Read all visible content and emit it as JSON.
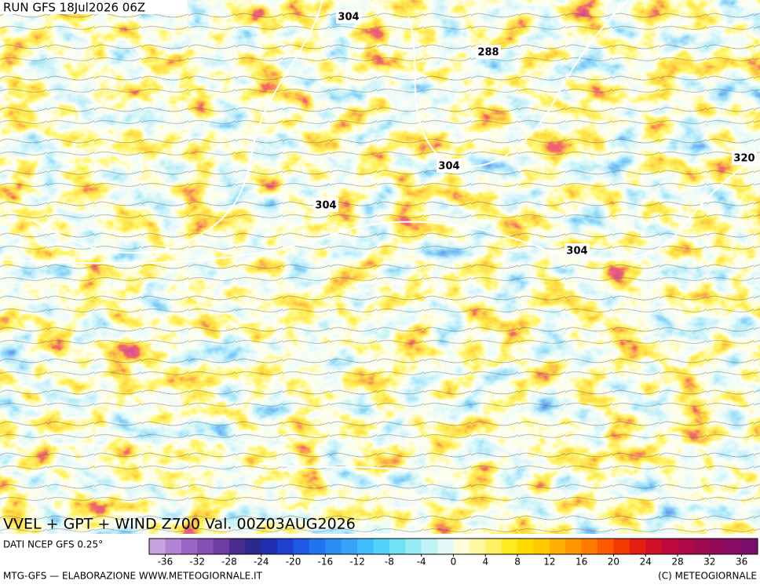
{
  "run_label": "RUN GFS 18Jul2026 06Z",
  "contour_labels": [
    "304",
    "288",
    "304",
    "304",
    "304",
    "320"
  ],
  "title": "VVEL + GPT + WIND Z700 Val. 00Z03AUG2026",
  "source": "DATI NCEP GFS 0.25°",
  "colorbar": {
    "range": [
      -38,
      38
    ],
    "ticks": [
      -36,
      -32,
      -28,
      -24,
      -20,
      -16,
      -12,
      -8,
      -4,
      0,
      4,
      8,
      12,
      16,
      20,
      24,
      28,
      32,
      36
    ],
    "colors": [
      "#c9a3e0",
      "#b384d6",
      "#9b66c8",
      "#8450b5",
      "#6e3ea3",
      "#4b2c8f",
      "#2a2a8c",
      "#1f2fb0",
      "#1e40d0",
      "#1e5ae6",
      "#2173ef",
      "#2a8cf5",
      "#35a4fa",
      "#40bdfc",
      "#4fd2fb",
      "#6fe2f6",
      "#97ecf5",
      "#bff3f5",
      "#e2f9f7",
      "#fffbd8",
      "#fff7a0",
      "#fff160",
      "#ffea20",
      "#ffdc00",
      "#ffc800",
      "#ffb000",
      "#ff9600",
      "#ff7a00",
      "#ff5a00",
      "#f23a00",
      "#e21e10",
      "#d01028",
      "#c00838",
      "#b00848",
      "#a00850",
      "#920a5a",
      "#860c64",
      "#7a0e6e"
    ]
  },
  "footer_left": "MTG-GFS — ELABORAZIONE WWW.METEOGIORNALE.IT",
  "footer_right": "(C) METEOGIORNALE"
}
